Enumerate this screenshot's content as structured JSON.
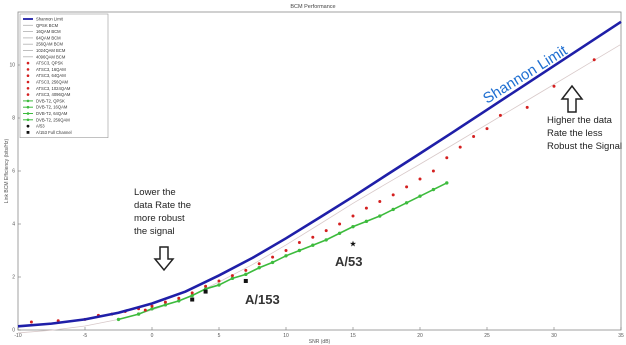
{
  "chart_data": {
    "type": "line",
    "title": "BCM Performance",
    "xlabel": "SNR (dB)",
    "ylabel": "Link BCM Efficiency (bits/Hz)",
    "xlim": [
      -10,
      35
    ],
    "ylim": [
      0,
      12
    ],
    "xticks": [
      -10,
      -5,
      0,
      5,
      10,
      15,
      20,
      25,
      30,
      35
    ],
    "yticks": [
      0,
      2,
      4,
      6,
      8,
      10
    ],
    "grid": false,
    "legend_position": "top-left",
    "legend": [
      {
        "label": "Shannon Limit",
        "color": "#1f1fa8",
        "marker": "line"
      },
      {
        "label": "QPSK BCM",
        "color": "#b0b0b0",
        "marker": "line"
      },
      {
        "label": "16QAM BCM",
        "color": "#b0b0b0",
        "marker": "line"
      },
      {
        "label": "64QAM BCM",
        "color": "#b0b0b0",
        "marker": "line"
      },
      {
        "label": "256QAM BCM",
        "color": "#b0b0b0",
        "marker": "line"
      },
      {
        "label": "1024QAM BCM",
        "color": "#b0b0b0",
        "marker": "line"
      },
      {
        "label": "4096QAM BCM",
        "color": "#b0b0b0",
        "marker": "line"
      },
      {
        "label": "ATSC3, QPSK",
        "color": "#d42020",
        "marker": "dot"
      },
      {
        "label": "ATSC3, 16QAM",
        "color": "#d42020",
        "marker": "dot"
      },
      {
        "label": "ATSC3, 64QAM",
        "color": "#d42020",
        "marker": "dot"
      },
      {
        "label": "ATSC3, 256QAM",
        "color": "#d42020",
        "marker": "dot"
      },
      {
        "label": "ATSC3, 1024QAM",
        "color": "#d42020",
        "marker": "dot"
      },
      {
        "label": "ATSC3, 4096QAM",
        "color": "#d42020",
        "marker": "dot"
      },
      {
        "label": "DVB-T2, QPSK",
        "color": "#3dbb3d",
        "marker": "line-dot"
      },
      {
        "label": "DVB-T2, 16QAM",
        "color": "#3dbb3d",
        "marker": "line-dot"
      },
      {
        "label": "DVB-T2, 64QAM",
        "color": "#3dbb3d",
        "marker": "line-dot"
      },
      {
        "label": "DVB-T2, 256QAM",
        "color": "#3dbb3d",
        "marker": "line-dot"
      },
      {
        "label": "A/53",
        "color": "#111111",
        "marker": "star"
      },
      {
        "label": "A/153 Full Channel",
        "color": "#111111",
        "marker": "square"
      }
    ],
    "series": [
      {
        "name": "Shannon Limit",
        "color": "#1f1fa8",
        "x": [
          -10,
          -7.5,
          -5,
          -2.5,
          0,
          2.5,
          5,
          7.5,
          10,
          12.5,
          15,
          17.5,
          20,
          22.5,
          25,
          27.5,
          30,
          32.5,
          35
        ],
        "y": [
          0.14,
          0.24,
          0.4,
          0.65,
          1.0,
          1.45,
          2.06,
          2.72,
          3.46,
          4.24,
          5.03,
          5.85,
          6.66,
          7.48,
          8.31,
          9.14,
          9.97,
          10.8,
          11.63
        ]
      },
      {
        "name": "DVB-T2, QPSK",
        "color": "#3dbb3d",
        "x": [
          -2.5,
          -1,
          0,
          1,
          2,
          3,
          4,
          5,
          6,
          7,
          8,
          9,
          10,
          11,
          12,
          13,
          14,
          15,
          16,
          17,
          18,
          19,
          20,
          21,
          22
        ],
        "y": [
          0.4,
          0.6,
          0.8,
          0.95,
          1.1,
          1.3,
          1.55,
          1.7,
          1.95,
          2.1,
          2.35,
          2.55,
          2.8,
          3.0,
          3.2,
          3.4,
          3.65,
          3.9,
          4.1,
          4.3,
          4.55,
          4.8,
          5.05,
          5.3,
          5.55
        ]
      },
      {
        "name": "ATSC3",
        "color": "#d42020",
        "x": [
          -9,
          -7,
          -5,
          -4,
          -3,
          -2,
          -1,
          -0.5,
          0,
          1,
          2,
          3,
          4,
          5,
          6,
          7,
          8,
          9,
          10,
          11,
          12,
          13,
          14,
          15,
          16,
          17,
          18,
          19,
          20,
          21,
          22,
          23,
          24,
          25,
          26,
          28,
          30,
          33
        ],
        "y": [
          0.3,
          0.35,
          0.4,
          0.55,
          0.6,
          0.7,
          0.8,
          0.75,
          0.9,
          1.05,
          1.2,
          1.4,
          1.65,
          1.85,
          2.05,
          2.25,
          2.5,
          2.75,
          3.0,
          3.3,
          3.5,
          3.75,
          4.0,
          4.3,
          4.6,
          4.85,
          5.1,
          5.4,
          5.7,
          6.0,
          6.5,
          6.9,
          7.3,
          7.6,
          8.1,
          8.4,
          9.2,
          10.2
        ]
      },
      {
        "name": "A/53",
        "color": "#111111",
        "x": [
          15
        ],
        "y": [
          3.25
        ]
      },
      {
        "name": "A/153 Full Channel",
        "color": "#111111",
        "x": [
          3,
          4,
          7
        ],
        "y": [
          1.15,
          1.45,
          1.85
        ]
      }
    ],
    "annotations": {
      "shannon": "Shannon Limit",
      "lower_1": "Lower the",
      "lower_2": "data Rate the",
      "lower_3": "more robust",
      "lower_4": "the signal",
      "higher_1": "Higher the data",
      "higher_2": "Rate the less",
      "higher_3": "Robust the Signal",
      "a53": "A/53",
      "a153": "A/153"
    }
  }
}
